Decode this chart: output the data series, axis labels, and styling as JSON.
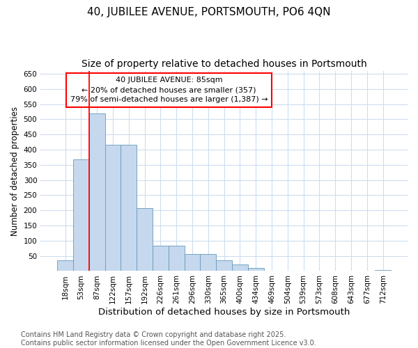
{
  "title": "40, JUBILEE AVENUE, PORTSMOUTH, PO6 4QN",
  "subtitle": "Size of property relative to detached houses in Portsmouth",
  "xlabel": "Distribution of detached houses by size in Portsmouth",
  "ylabel": "Number of detached properties",
  "categories": [
    "18sqm",
    "53sqm",
    "87sqm",
    "122sqm",
    "157sqm",
    "192sqm",
    "226sqm",
    "261sqm",
    "296sqm",
    "330sqm",
    "365sqm",
    "400sqm",
    "434sqm",
    "469sqm",
    "504sqm",
    "539sqm",
    "573sqm",
    "608sqm",
    "643sqm",
    "677sqm",
    "712sqm"
  ],
  "values": [
    35,
    367,
    520,
    417,
    417,
    207,
    83,
    83,
    55,
    55,
    35,
    22,
    10,
    0,
    0,
    0,
    0,
    0,
    0,
    0,
    3
  ],
  "bar_color": "#c5d8ed",
  "bar_edge_color": "#6699bb",
  "vline_x_index": 2,
  "vline_color": "red",
  "ylim": [
    0,
    660
  ],
  "yticks": [
    0,
    50,
    100,
    150,
    200,
    250,
    300,
    350,
    400,
    450,
    500,
    550,
    600,
    650
  ],
  "annotation_title": "40 JUBILEE AVENUE: 85sqm",
  "annotation_line1": "← 20% of detached houses are smaller (357)",
  "annotation_line2": "79% of semi-detached houses are larger (1,387) →",
  "annotation_box_color": "red",
  "footer_line1": "Contains HM Land Registry data © Crown copyright and database right 2025.",
  "footer_line2": "Contains public sector information licensed under the Open Government Licence v3.0.",
  "bg_color": "#ffffff",
  "plot_bg_color": "#ffffff",
  "title_fontsize": 11,
  "subtitle_fontsize": 10,
  "xlabel_fontsize": 9.5,
  "ylabel_fontsize": 8.5,
  "footer_fontsize": 7,
  "tick_fontsize": 7.5,
  "annot_fontsize": 8
}
